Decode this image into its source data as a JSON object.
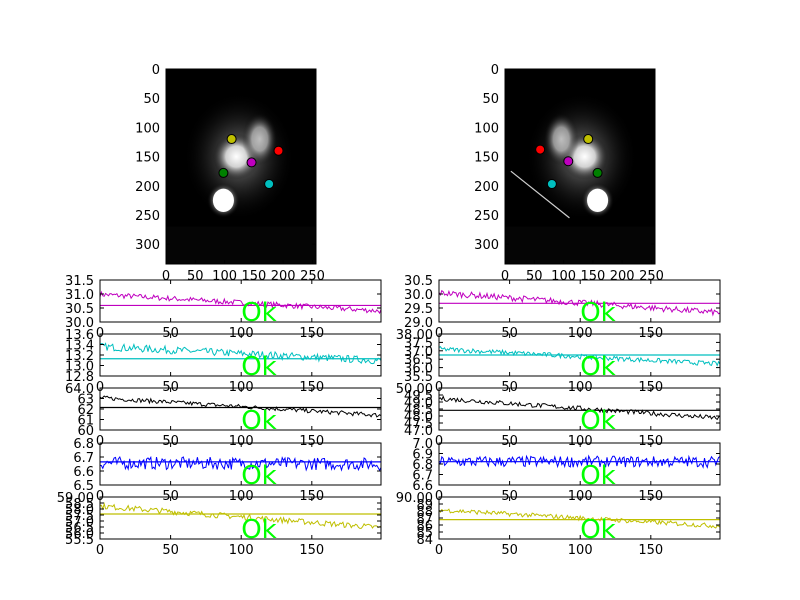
{
  "colors": {
    "magenta": "#bf00bf",
    "cyan": "#00bfbf",
    "black": "#000000",
    "blue": "#0000ff",
    "yellow": "#bfbf00",
    "red": "#ff0000",
    "green": "#008000",
    "ok_text": "#00ff00"
  },
  "images": [
    {
      "panel": "left",
      "image_size": [
        256,
        334
      ],
      "xticks": [
        0,
        50,
        100,
        150,
        200,
        250
      ],
      "yticks": [
        0,
        50,
        100,
        150,
        200,
        250,
        300
      ],
      "markers": [
        {
          "color": "yellow",
          "x": 112,
          "y": 120
        },
        {
          "color": "red",
          "x": 192,
          "y": 140
        },
        {
          "color": "magenta",
          "x": 146,
          "y": 160
        },
        {
          "color": "green",
          "x": 98,
          "y": 178
        },
        {
          "color": "cyan",
          "x": 176,
          "y": 197
        }
      ]
    },
    {
      "panel": "right",
      "image_size": [
        256,
        334
      ],
      "xticks": [
        0,
        50,
        100,
        150,
        200,
        250
      ],
      "yticks": [
        0,
        50,
        100,
        150,
        200,
        250,
        300
      ],
      "markers": [
        {
          "color": "red",
          "x": 60,
          "y": 138
        },
        {
          "color": "yellow",
          "x": 142,
          "y": 120
        },
        {
          "color": "magenta",
          "x": 108,
          "y": 158
        },
        {
          "color": "green",
          "x": 158,
          "y": 178
        },
        {
          "color": "cyan",
          "x": 80,
          "y": 197
        }
      ]
    }
  ],
  "status_label": "Ok",
  "chart_data": [
    {
      "type": "line",
      "panel": "left",
      "row": 0,
      "color": "magenta",
      "x_range": [
        0,
        199
      ],
      "ylim": [
        29.7,
        31.6
      ],
      "yticks": [
        "31.5",
        "31.0",
        "30.5",
        "30.0"
      ],
      "threshold": 30.45,
      "start": 30.95,
      "end": 30.2,
      "noise": 0.12
    },
    {
      "type": "line",
      "panel": "left",
      "row": 1,
      "color": "cyan",
      "x_range": [
        0,
        199
      ],
      "ylim": [
        12.75,
        13.65
      ],
      "yticks": [
        "13.6",
        "13.4",
        "13.2",
        "13.0",
        "12.8"
      ],
      "threshold": 13.12,
      "start": 13.38,
      "end": 13.08,
      "noise": 0.08
    },
    {
      "type": "line",
      "panel": "left",
      "row": 2,
      "color": "black",
      "x_range": [
        0,
        199
      ],
      "ylim": [
        59.7,
        64.0
      ],
      "yticks": [
        "64.0",
        "63",
        "62",
        "61",
        "60"
      ],
      "threshold": 62.0,
      "start": 63.0,
      "end": 61.2,
      "noise": 0.22
    },
    {
      "type": "line",
      "panel": "left",
      "row": 3,
      "color": "blue",
      "x_range": [
        0,
        199
      ],
      "ylim": [
        6.45,
        6.85
      ],
      "yticks": [
        "6.8",
        "6.7",
        "6.6",
        "6.5"
      ],
      "threshold": 6.67,
      "start": 6.66,
      "end": 6.65,
      "noise": 0.06
    },
    {
      "type": "line",
      "panel": "left",
      "row": 4,
      "color": "yellow",
      "x_range": [
        0,
        199
      ],
      "ylim": [
        55.3,
        59.0
      ],
      "yticks": [
        "59.00",
        "58.5",
        "58.0",
        "57.5",
        "57.0",
        "56.5",
        "56.0",
        "55.5"
      ],
      "threshold": 57.5,
      "start": 58.2,
      "end": 56.3,
      "noise": 0.25
    },
    {
      "type": "line",
      "panel": "right",
      "row": 0,
      "color": "magenta",
      "x_range": [
        0,
        199
      ],
      "ylim": [
        28.8,
        30.6
      ],
      "yticks": [
        "30.5",
        "30.0",
        "29.5",
        "29.0"
      ],
      "threshold": 29.6,
      "start": 30.05,
      "end": 29.2,
      "noise": 0.13
    },
    {
      "type": "line",
      "panel": "right",
      "row": 1,
      "color": "cyan",
      "x_range": [
        0,
        199
      ],
      "ylim": [
        35.3,
        38.1
      ],
      "yticks": [
        "38.00",
        "37.5",
        "37.0",
        "36.5",
        "36.0",
        "35.5"
      ],
      "threshold": 36.7,
      "start": 37.1,
      "end": 36.1,
      "noise": 0.16
    },
    {
      "type": "line",
      "panel": "right",
      "row": 2,
      "color": "black",
      "x_range": [
        0,
        199
      ],
      "ylim": [
        46.8,
        50.0
      ],
      "yticks": [
        "50.00",
        "49.5",
        "49.0",
        "48.5",
        "48.0",
        "47.5",
        "47.0"
      ],
      "threshold": 48.3,
      "start": 49.2,
      "end": 47.7,
      "noise": 0.18
    },
    {
      "type": "line",
      "panel": "right",
      "row": 3,
      "color": "blue",
      "x_range": [
        0,
        199
      ],
      "ylim": [
        6.55,
        7.0
      ],
      "yticks": [
        "7.0",
        "6.9",
        "6.8",
        "6.7",
        "6.6"
      ],
      "threshold": 6.8,
      "start": 6.8,
      "end": 6.8,
      "noise": 0.06
    },
    {
      "type": "line",
      "panel": "right",
      "row": 4,
      "color": "yellow",
      "x_range": [
        0,
        199
      ],
      "ylim": [
        83.5,
        90.0
      ],
      "yticks": [
        "90.00",
        "89",
        "88",
        "87",
        "86",
        "85",
        "84"
      ],
      "threshold": 86.5,
      "start": 88.0,
      "end": 85.5,
      "noise": 0.35
    }
  ],
  "xticks_line": [
    0,
    50,
    100,
    150
  ]
}
